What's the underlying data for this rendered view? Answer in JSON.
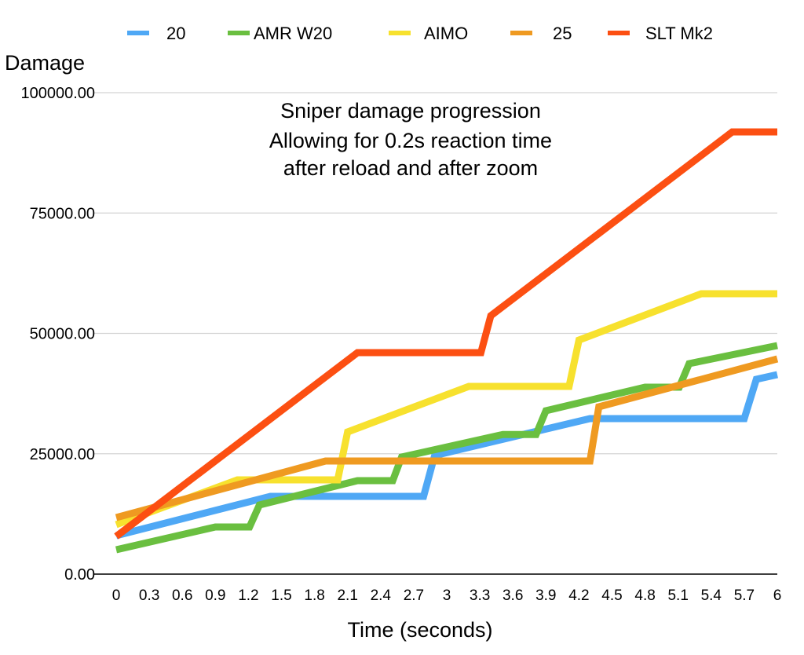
{
  "chart_data": {
    "type": "line",
    "title_lines": [
      "Sniper damage progression",
      "Allowing for 0.2s reaction time",
      "after reload and after zoom"
    ],
    "xlabel": "Time (seconds)",
    "ylabel": "Damage",
    "xlim": [
      0,
      6
    ],
    "ylim": [
      0,
      100000
    ],
    "x_ticks": [
      "0",
      "0.3",
      "0.6",
      "0.9",
      "1.2",
      "1.5",
      "1.8",
      "2.1",
      "2.4",
      "2.7",
      "3",
      "3.3",
      "3.6",
      "3.9",
      "4.2",
      "4.5",
      "4.8",
      "5.1",
      "5.4",
      "5.7",
      "6"
    ],
    "y_ticks": [
      {
        "value": 0,
        "label": "0.00"
      },
      {
        "value": 25000,
        "label": "25000.00"
      },
      {
        "value": 50000,
        "label": "50000.00"
      },
      {
        "value": 75000,
        "label": "75000.00"
      },
      {
        "value": 100000,
        "label": "100000.00"
      }
    ],
    "grid": true,
    "legend_position": "top",
    "series": [
      {
        "name": "20",
        "color": "#4fa8f5",
        "points": [
          [
            0,
            7990
          ],
          [
            1.4,
            16150
          ],
          [
            2.79,
            16150
          ],
          [
            2.89,
            24630
          ],
          [
            4.3,
            32300
          ],
          [
            5.7,
            32300
          ],
          [
            5.81,
            40460
          ],
          [
            6,
            41440
          ]
        ]
      },
      {
        "name": "AMR W20",
        "color": "#6abf40",
        "points": [
          [
            0,
            5060
          ],
          [
            0.9,
            9790
          ],
          [
            1.21,
            9790
          ],
          [
            1.3,
            14360
          ],
          [
            2.19,
            19410
          ],
          [
            2.51,
            19410
          ],
          [
            2.59,
            24310
          ],
          [
            3.51,
            29000
          ],
          [
            3.81,
            29000
          ],
          [
            3.9,
            33930
          ],
          [
            4.8,
            38830
          ],
          [
            5.11,
            38830
          ],
          [
            5.2,
            43720
          ],
          [
            6,
            47470
          ]
        ]
      },
      {
        "name": "AIMO",
        "color": "#f7e12e",
        "points": [
          [
            0,
            10280
          ],
          [
            1.1,
            19580
          ],
          [
            2.01,
            19580
          ],
          [
            2.1,
            29530
          ],
          [
            3.2,
            38990
          ],
          [
            4.11,
            38990
          ],
          [
            4.2,
            48610
          ],
          [
            5.31,
            58240
          ],
          [
            6,
            58240
          ]
        ]
      },
      {
        "name": "25",
        "color": "#ef9a21",
        "points": [
          [
            0,
            11750
          ],
          [
            1.9,
            23490
          ],
          [
            4.3,
            23490
          ],
          [
            4.38,
            34750
          ],
          [
            6,
            44700
          ]
        ]
      },
      {
        "name": "SLT Mk2",
        "color": "#fc4f12",
        "points": [
          [
            0,
            7830
          ],
          [
            2.19,
            46000
          ],
          [
            3.31,
            46000
          ],
          [
            3.4,
            53670
          ],
          [
            5.59,
            91840
          ],
          [
            6,
            91840
          ]
        ]
      }
    ]
  }
}
